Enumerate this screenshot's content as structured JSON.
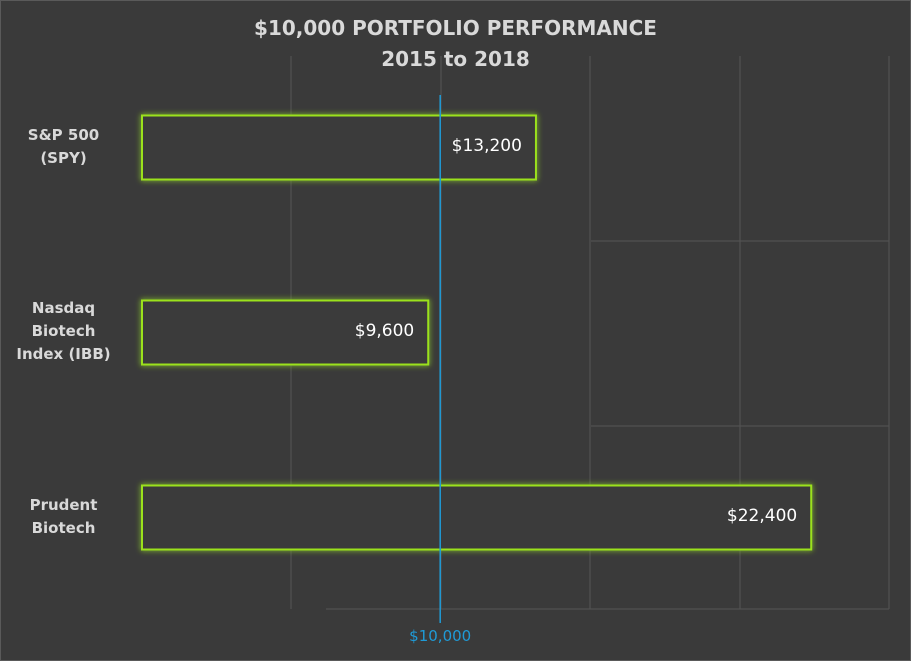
{
  "chart_data": {
    "type": "bar",
    "orientation": "horizontal",
    "title_lines": [
      "$10,000 PORTFOLIO PERFORMANCE",
      "2015 to 2018"
    ],
    "categories": [
      {
        "lines": [
          "S&P 500",
          "(SPY)"
        ]
      },
      {
        "lines": [
          "Nasdaq",
          "Biotech",
          "Index (IBB)"
        ]
      },
      {
        "lines": [
          "Prudent",
          "Biotech"
        ]
      }
    ],
    "values": [
      13200,
      9600,
      22400
    ],
    "value_labels": [
      "$13,200",
      "$9,600",
      "$22,400"
    ],
    "reference_line": {
      "value": 10000,
      "label": "$10,000",
      "color": "#1f9bd7"
    },
    "xlim": [
      0,
      25000
    ],
    "grid": true,
    "bar_fill": "#3a3a3a",
    "bar_outline": "#9be21f",
    "background": "#3a3a3a",
    "gridline_color": "#555555"
  }
}
